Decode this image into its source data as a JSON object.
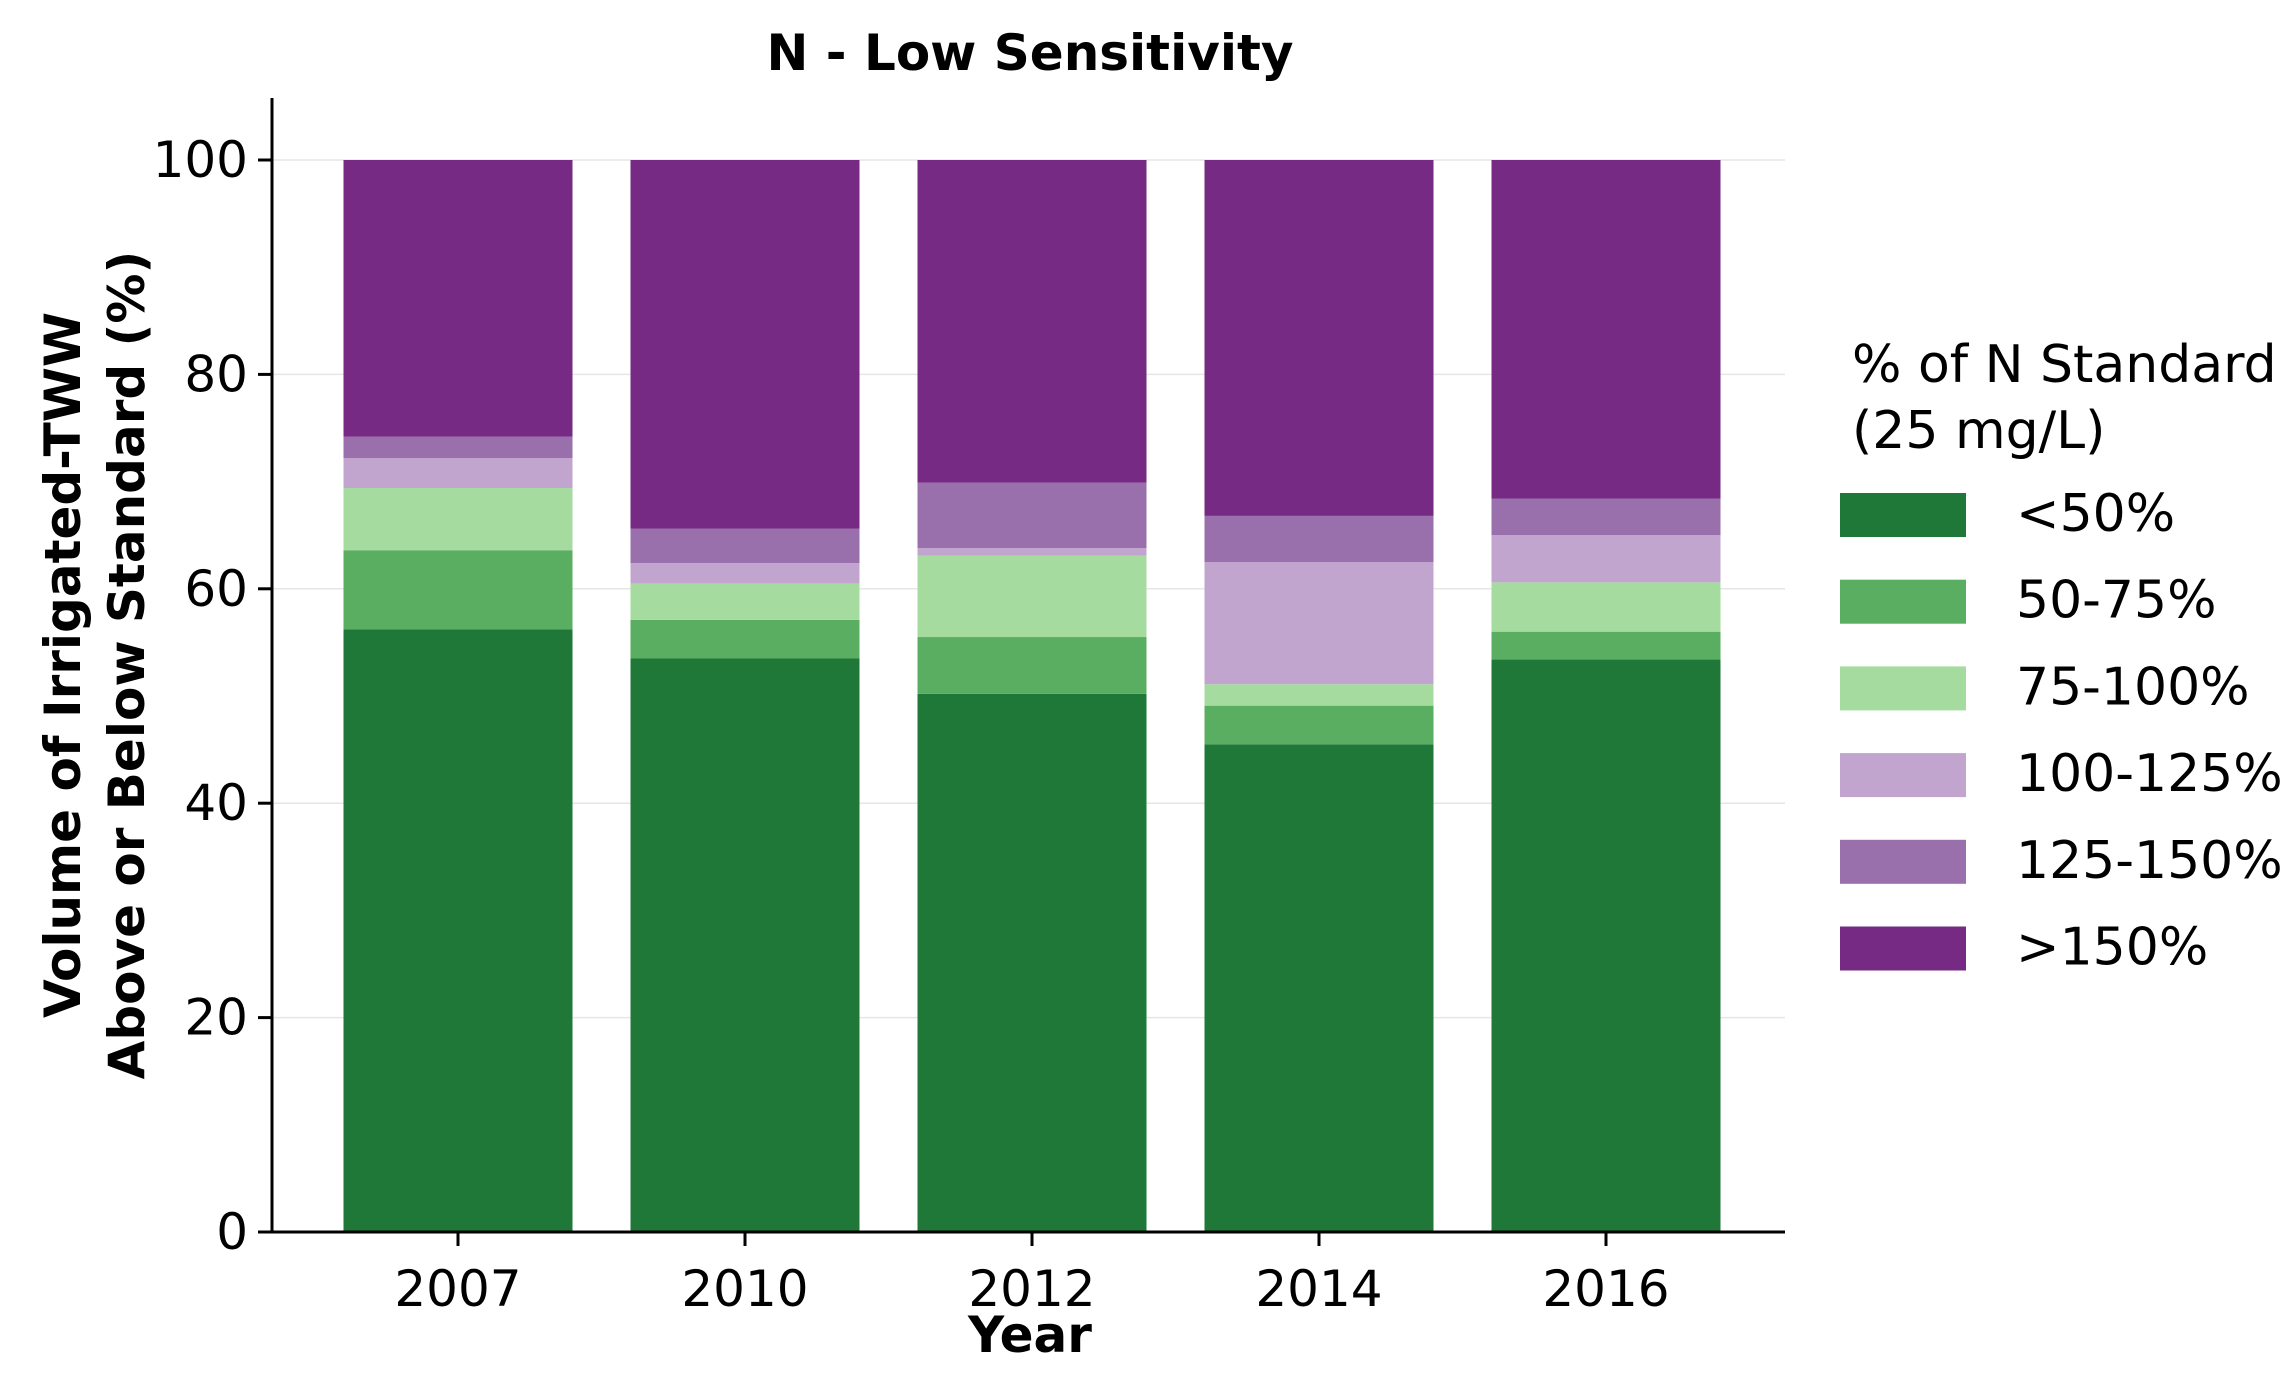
{
  "chart_data": {
    "type": "bar",
    "stacked": true,
    "title": "N - Low Sensitivity",
    "xlabel": "Year",
    "ylabel": [
      "Volume of Irrigated-TWW",
      "Above or Below Standard (%)"
    ],
    "ylim": [
      0,
      105
    ],
    "yticks": [
      0,
      20,
      40,
      60,
      80,
      100
    ],
    "grid": true,
    "legend_position": "right",
    "legend_title": [
      "% of N Standard",
      "(25 mg/L)"
    ],
    "categories": [
      "2007",
      "2010",
      "2012",
      "2014",
      "2016"
    ],
    "series": [
      {
        "name": "<50%",
        "color": "#1f7837",
        "values": [
          56.2,
          53.5,
          50.2,
          45.5,
          53.4
        ]
      },
      {
        "name": "50-75%",
        "color": "#5aae61",
        "values": [
          7.4,
          3.6,
          5.3,
          3.6,
          2.6
        ]
      },
      {
        "name": "75-100%",
        "color": "#a6dba0",
        "values": [
          5.8,
          3.4,
          7.6,
          2.0,
          4.6
        ]
      },
      {
        "name": "100-125%",
        "color": "#c2a5cf",
        "values": [
          2.8,
          1.9,
          0.7,
          11.4,
          4.4
        ]
      },
      {
        "name": "125-150%",
        "color": "#9970ab",
        "values": [
          2.0,
          3.2,
          6.1,
          4.3,
          3.4
        ]
      },
      {
        "name": ">150%",
        "color": "#762a83",
        "values": [
          25.8,
          34.4,
          30.1,
          33.2,
          31.6
        ]
      }
    ]
  }
}
